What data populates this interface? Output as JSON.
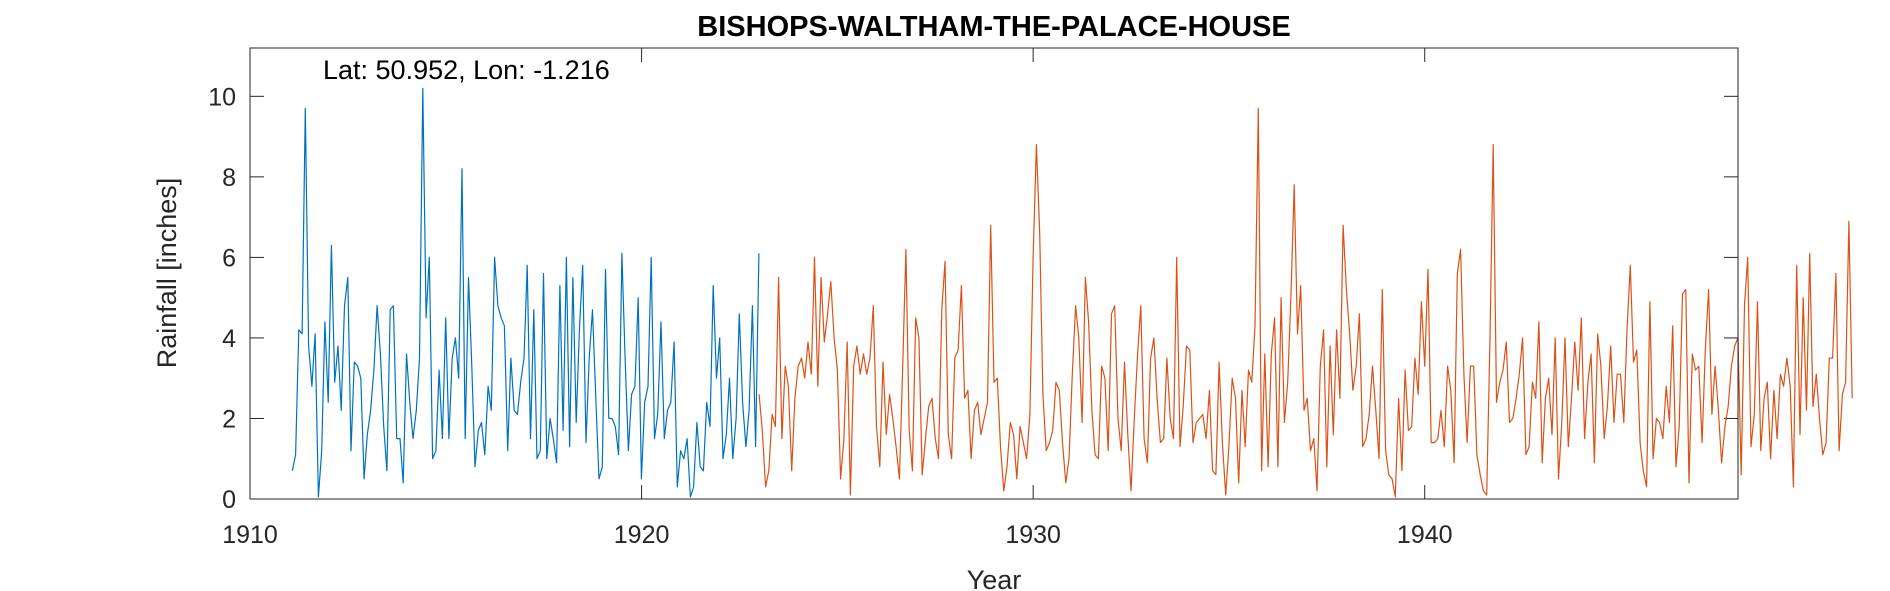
{
  "chart_data": {
    "type": "line",
    "title": "BISHOPS-WALTHAM-THE-PALACE-HOUSE",
    "xlabel": "Year",
    "ylabel": "Rainfall [inches]",
    "annotation": "Lat: 50.952, Lon: -1.216",
    "xlim": [
      1910,
      1948
    ],
    "ylim": [
      0,
      11.2
    ],
    "xticks": [
      1910,
      1920,
      1930,
      1940
    ],
    "yticks": [
      0,
      2,
      4,
      6,
      8,
      10
    ],
    "xtick_labels": [
      "1910",
      "1920",
      "1930",
      "1940"
    ],
    "ytick_labels": [
      "0",
      "2",
      "4",
      "6",
      "8",
      "10"
    ],
    "grid": false,
    "series": [
      {
        "color": "#0072BD",
        "x_start": 1911.08,
        "x_step": 0.08333,
        "values": [
          0.7,
          1.1,
          4.2,
          4.1,
          9.7,
          3.8,
          2.8,
          4.1,
          0.05,
          1.2,
          4.4,
          2.4,
          6.3,
          2.9,
          3.8,
          2.2,
          4.8,
          5.5,
          1.2,
          3.4,
          3.3,
          3.0,
          0.5,
          1.6,
          2.2,
          3.2,
          4.8,
          3.6,
          1.8,
          0.7,
          4.7,
          4.8,
          1.5,
          1.5,
          0.4,
          3.6,
          2.4,
          1.5,
          2.2,
          3.5,
          10.2,
          4.5,
          6.0,
          1.0,
          1.2,
          3.2,
          1.5,
          4.5,
          1.5,
          3.5,
          4.0,
          3.0,
          8.2,
          1.5,
          5.5,
          3.3,
          0.8,
          1.7,
          1.9,
          1.1,
          2.8,
          2.2,
          6.0,
          4.8,
          4.5,
          4.3,
          1.2,
          3.5,
          2.2,
          2.1,
          2.9,
          3.5,
          5.8,
          1.5,
          4.7,
          1.0,
          1.2,
          5.6,
          1.0,
          2.0,
          1.5,
          0.9,
          5.3,
          1.7,
          6.0,
          1.3,
          5.5,
          1.9,
          4.2,
          5.8,
          1.4,
          3.5,
          4.7,
          2.5,
          0.5,
          0.8,
          5.7,
          2.0,
          2.0,
          1.8,
          1.1,
          6.1,
          3.5,
          1.2,
          2.6,
          2.8,
          5.0,
          0.5,
          2.4,
          2.8,
          6.0,
          1.5,
          2.1,
          4.4,
          1.5,
          2.2,
          2.4,
          3.9,
          0.3,
          1.2,
          1.0,
          1.5,
          0.05,
          0.3,
          1.9,
          0.8,
          0.7,
          2.4,
          1.8,
          5.3,
          3.0,
          4.0,
          1.0,
          1.6,
          3.0,
          1.0,
          2.0,
          4.6,
          2.4,
          1.3,
          2.2,
          4.8,
          1.3,
          6.1
        ]
      },
      {
        "color": "#D95319",
        "x_start": 1923.0,
        "x_step": 0.08333,
        "values": [
          2.6,
          1.7,
          0.3,
          0.7,
          2.1,
          1.8,
          5.5,
          1.5,
          3.3,
          2.8,
          0.7,
          2.5,
          3.3,
          3.5,
          3.0,
          3.9,
          3.1,
          6.0,
          2.8,
          5.5,
          3.9,
          4.6,
          5.4,
          4.0,
          3.2,
          0.5,
          1.5,
          3.9,
          0.1,
          3.3,
          3.8,
          3.1,
          3.6,
          3.1,
          3.5,
          4.8,
          1.8,
          0.8,
          3.4,
          1.6,
          2.6,
          2.0,
          1.3,
          0.5,
          3.2,
          6.2,
          1.7,
          0.7,
          4.5,
          4.0,
          0.6,
          1.5,
          2.3,
          2.5,
          1.5,
          1.0,
          4.7,
          5.9,
          1.6,
          1.0,
          3.5,
          3.7,
          5.3,
          2.5,
          2.7,
          1.0,
          2.2,
          2.4,
          1.6,
          2.0,
          2.4,
          6.8,
          2.9,
          3.0,
          1.3,
          0.2,
          0.8,
          1.9,
          1.6,
          0.5,
          1.8,
          1.4,
          1.0,
          2.1,
          6.0,
          8.8,
          6.6,
          2.6,
          1.2,
          1.4,
          1.7,
          2.9,
          2.7,
          1.4,
          0.4,
          1.0,
          3.1,
          4.8,
          4.0,
          1.9,
          5.5,
          4.4,
          2.2,
          1.1,
          1.0,
          3.3,
          3.0,
          1.2,
          4.6,
          4.8,
          2.0,
          1.2,
          3.4,
          1.6,
          0.2,
          2.0,
          3.6,
          4.8,
          1.5,
          0.9,
          3.5,
          4.0,
          2.5,
          1.4,
          1.5,
          3.5,
          2.0,
          1.5,
          6.0,
          1.3,
          2.3,
          3.8,
          3.7,
          1.4,
          1.9,
          2.0,
          2.1,
          1.5,
          2.7,
          0.7,
          0.6,
          3.4,
          1.4,
          0.1,
          1.3,
          3.0,
          2.5,
          0.4,
          2.7,
          1.3,
          3.2,
          2.9,
          4.3,
          9.7,
          0.7,
          3.6,
          0.8,
          3.6,
          4.5,
          0.8,
          5.0,
          1.9,
          2.9,
          5.0,
          7.8,
          4.1,
          5.3,
          2.2,
          2.5,
          1.2,
          1.5,
          0.2,
          3.3,
          4.2,
          0.8,
          3.8,
          1.6,
          4.2,
          2.5,
          6.8,
          5.2,
          4.1,
          2.7,
          3.3,
          4.6,
          1.3,
          1.5,
          2.1,
          3.3,
          2.2,
          1.0,
          5.2,
          1.2,
          0.6,
          0.5,
          0.05,
          2.5,
          0.7,
          3.2,
          1.7,
          1.8,
          3.5,
          2.6,
          4.9,
          3.3,
          5.7,
          1.4,
          1.4,
          1.5,
          2.2,
          1.3,
          3.3,
          2.7,
          0.9,
          5.6,
          6.2,
          3.1,
          1.4,
          3.3,
          3.3,
          1.1,
          0.6,
          0.2,
          0.1,
          4.0,
          8.8,
          2.4,
          2.9,
          3.2,
          3.9,
          1.9,
          2.0,
          2.5,
          3.1,
          4.0,
          1.1,
          1.3,
          2.9,
          2.5,
          4.4,
          0.9,
          2.5,
          3.0,
          1.6,
          4.0,
          0.5,
          1.9,
          4.0,
          1.3,
          2.5,
          3.9,
          2.7,
          4.5,
          1.5,
          2.9,
          3.6,
          0.9,
          4.1,
          3.3,
          1.5,
          2.3,
          3.8,
          1.9,
          3.1,
          3.1,
          1.9,
          4.2,
          5.8,
          3.4,
          3.7,
          1.4,
          0.7,
          0.3,
          4.9,
          1.0,
          2.0,
          1.9,
          1.5,
          2.8,
          1.9,
          4.3,
          0.8,
          1.8,
          5.1,
          5.2,
          0.4,
          3.6,
          3.2,
          3.3,
          1.4,
          3.7,
          5.2,
          2.1,
          3.3,
          2.2,
          0.9,
          1.8,
          2.3,
          3.3,
          3.8,
          4.0,
          0.6,
          4.8,
          6.0,
          1.3,
          2.1,
          4.9,
          1.2,
          2.5,
          2.9,
          1.0,
          2.7,
          1.5,
          3.1,
          2.8,
          3.5,
          2.8,
          0.3,
          5.8,
          1.6,
          5.0,
          2.2,
          6.1,
          2.3,
          3.1,
          2.0,
          1.1,
          1.4,
          3.5,
          3.5,
          5.6,
          1.2,
          2.6,
          2.9,
          6.9,
          2.5
        ]
      }
    ]
  }
}
